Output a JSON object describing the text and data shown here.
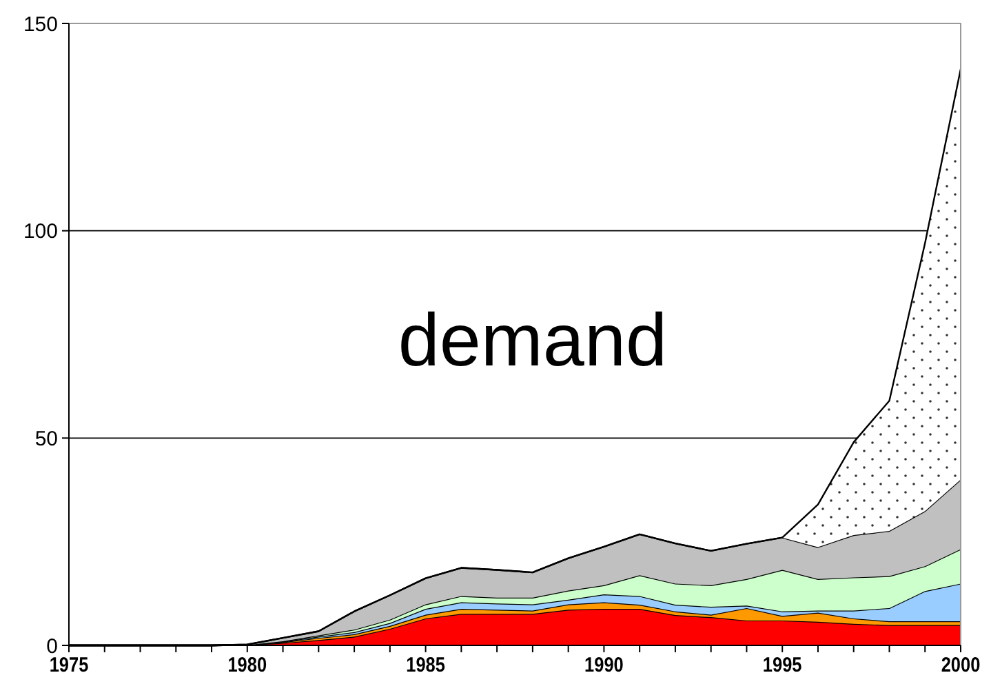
{
  "chart_data": {
    "type": "area",
    "stacked": true,
    "x": [
      1975,
      1976,
      1977,
      1978,
      1979,
      1980,
      1981,
      1982,
      1983,
      1984,
      1985,
      1986,
      1987,
      1988,
      1989,
      1990,
      1991,
      1992,
      1993,
      1994,
      1995,
      1996,
      1997,
      1998,
      1999,
      2000
    ],
    "series": [
      {
        "color": "#ff0000",
        "values": [
          0,
          0,
          0,
          0,
          0,
          0.1,
          0.6,
          1.3,
          2.1,
          4.0,
          6.5,
          7.6,
          7.6,
          7.6,
          8.6,
          8.8,
          8.8,
          7.3,
          6.8,
          6.0,
          6.0,
          5.7,
          5.2,
          4.9,
          4.9,
          4.9
        ]
      },
      {
        "color": "#ff9900",
        "values": [
          0,
          0,
          0,
          0,
          0,
          0,
          0.2,
          0.5,
          0.6,
          0.7,
          0.9,
          1.2,
          1.0,
          0.8,
          1.3,
          1.6,
          1.0,
          0.9,
          0.6,
          3.0,
          1.1,
          2.2,
          1.3,
          0.9,
          0.9,
          0.9
        ]
      },
      {
        "color": "#99ccff",
        "values": [
          0,
          0,
          0,
          0,
          0,
          0,
          0.1,
          0.3,
          0.5,
          0.7,
          1.4,
          1.6,
          1.5,
          1.5,
          1.1,
          1.9,
          2.1,
          1.6,
          1.9,
          0.6,
          1.1,
          0.5,
          1.9,
          3.2,
          7.3,
          9.1
        ]
      },
      {
        "color": "#ccffcc",
        "values": [
          0,
          0,
          0,
          0,
          0,
          0,
          0.1,
          0.3,
          0.6,
          0.8,
          1.1,
          1.5,
          1.4,
          1.6,
          2.2,
          2.2,
          5.0,
          5.1,
          5.2,
          6.4,
          10.0,
          7.6,
          8.0,
          7.7,
          6.0,
          8.3
        ]
      },
      {
        "color": "#c0c0c0",
        "values": [
          0,
          0,
          0,
          0,
          0,
          0.1,
          0.8,
          1.0,
          4.4,
          5.9,
          6.3,
          6.8,
          6.7,
          6.1,
          7.8,
          9.3,
          9.9,
          9.7,
          8.3,
          8.5,
          7.8,
          7.7,
          10.2,
          10.9,
          13.3,
          16.8
        ]
      },
      {
        "color": "#ffffff",
        "values": [
          0,
          0,
          0,
          0,
          0,
          0,
          0,
          0,
          0,
          0,
          0,
          0,
          0,
          0,
          0,
          0,
          0,
          0,
          0,
          0,
          0,
          10.3,
          22.4,
          31.4,
          64.6,
          99
        ]
      }
    ],
    "xlim": [
      1975,
      2000
    ],
    "xticks": [
      1975,
      {
        "value": 1976,
        "label": null
      },
      {
        "value": 1977,
        "label": null
      },
      {
        "value": 1978,
        "label": null
      },
      {
        "value": 1979,
        "label": null
      },
      1980,
      {
        "value": 1981,
        "label": null
      },
      {
        "value": 1982,
        "label": null
      },
      {
        "value": 1983,
        "label": null
      },
      {
        "value": 1984,
        "label": null
      },
      1985,
      {
        "value": 1986,
        "label": null
      },
      {
        "value": 1987,
        "label": null
      },
      {
        "value": 1988,
        "label": null
      },
      {
        "value": 1989,
        "label": null
      },
      1990,
      {
        "value": 1991,
        "label": null
      },
      {
        "value": 1992,
        "label": null
      },
      {
        "value": 1993,
        "label": null
      },
      {
        "value": 1994,
        "label": null
      },
      1995,
      {
        "value": 1996,
        "label": null
      },
      {
        "value": 1997,
        "label": null
      },
      {
        "value": 1998,
        "label": null
      },
      {
        "value": 1999,
        "label": null
      },
      2000
    ],
    "ylim": [
      0,
      150
    ],
    "yticks": [
      0,
      50,
      100,
      150
    ],
    "grid": "y",
    "annotations": [
      "demand"
    ]
  }
}
